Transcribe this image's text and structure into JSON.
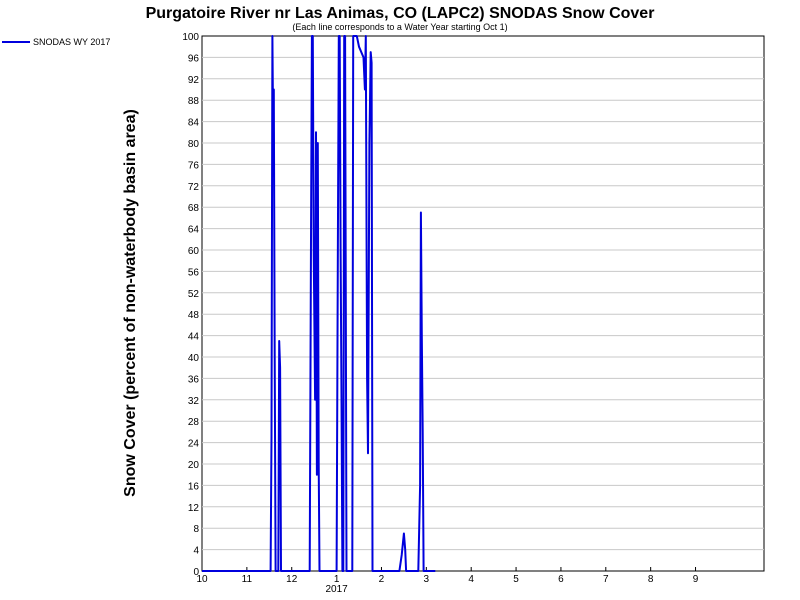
{
  "chart_data": {
    "type": "line",
    "title": "Purgatoire River nr Las Animas, CO (LAPC2) SNODAS Snow Cover",
    "subtitle": "(Each line corresponds to a Water Year starting Oct 1)",
    "ylabel": "Snow Cover (percent of non-waterbody basin area)",
    "xlabel": "",
    "ylim": [
      0,
      100
    ],
    "yticks": [
      0,
      4,
      8,
      12,
      16,
      20,
      24,
      28,
      32,
      36,
      40,
      44,
      48,
      52,
      56,
      60,
      64,
      68,
      72,
      76,
      80,
      84,
      88,
      92,
      96,
      100
    ],
    "xlim": [
      0,
      12
    ],
    "xticks": [
      {
        "x": 0,
        "label": "10"
      },
      {
        "x": 1,
        "label": "11"
      },
      {
        "x": 2,
        "label": "12"
      },
      {
        "x": 3,
        "label": "1"
      },
      {
        "x": 4,
        "label": "2"
      },
      {
        "x": 5,
        "label": "3"
      },
      {
        "x": 6,
        "label": "4"
      },
      {
        "x": 7,
        "label": "5"
      },
      {
        "x": 8,
        "label": "6"
      },
      {
        "x": 9,
        "label": "7"
      },
      {
        "x": 10,
        "label": "8"
      },
      {
        "x": 11,
        "label": "9"
      }
    ],
    "year_label": {
      "x": 3,
      "label": "2017"
    },
    "grid": true,
    "legend_position": "top-left",
    "series": [
      {
        "name": "SNODAS WY 2017",
        "color": "#0000dd",
        "points": [
          [
            0,
            0
          ],
          [
            1.53,
            0
          ],
          [
            1.55,
            25
          ],
          [
            1.57,
            100
          ],
          [
            1.59,
            78
          ],
          [
            1.6,
            90
          ],
          [
            1.62,
            40
          ],
          [
            1.64,
            0
          ],
          [
            1.7,
            0
          ],
          [
            1.72,
            43
          ],
          [
            1.74,
            38
          ],
          [
            1.76,
            0
          ],
          [
            2.4,
            0
          ],
          [
            2.43,
            62
          ],
          [
            2.45,
            100
          ],
          [
            2.47,
            100
          ],
          [
            2.49,
            60
          ],
          [
            2.52,
            32
          ],
          [
            2.54,
            82
          ],
          [
            2.56,
            18
          ],
          [
            2.58,
            80
          ],
          [
            2.6,
            20
          ],
          [
            2.62,
            0
          ],
          [
            3.0,
            0
          ],
          [
            3.03,
            62
          ],
          [
            3.05,
            100
          ],
          [
            3.07,
            100
          ],
          [
            3.09,
            60
          ],
          [
            3.11,
            32
          ],
          [
            3.13,
            0
          ],
          [
            3.15,
            0
          ],
          [
            3.17,
            100
          ],
          [
            3.19,
            100
          ],
          [
            3.22,
            0
          ],
          [
            3.35,
            0
          ],
          [
            3.37,
            100
          ],
          [
            3.45,
            100
          ],
          [
            3.5,
            98
          ],
          [
            3.6,
            96
          ],
          [
            3.63,
            90
          ],
          [
            3.65,
            100
          ],
          [
            3.68,
            36
          ],
          [
            3.7,
            22
          ],
          [
            3.73,
            80
          ],
          [
            3.76,
            97
          ],
          [
            3.78,
            95
          ],
          [
            3.8,
            0
          ],
          [
            4.4,
            0
          ],
          [
            4.45,
            3
          ],
          [
            4.5,
            7
          ],
          [
            4.53,
            4
          ],
          [
            4.55,
            0
          ],
          [
            4.82,
            0
          ],
          [
            4.86,
            16
          ],
          [
            4.88,
            67
          ],
          [
            4.9,
            44
          ],
          [
            4.92,
            26
          ],
          [
            4.94,
            0
          ],
          [
            5.2,
            0
          ]
        ]
      }
    ]
  }
}
